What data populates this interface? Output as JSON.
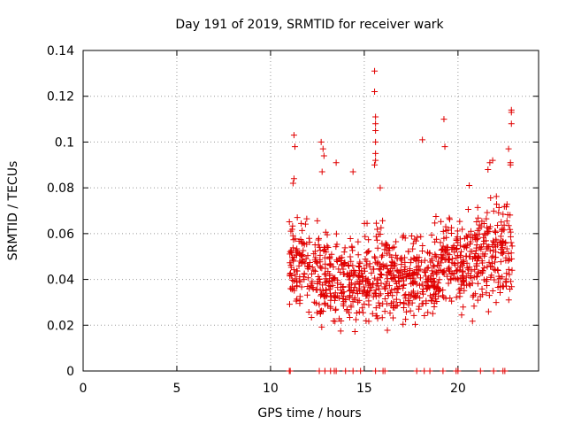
{
  "chart_data": {
    "type": "scatter",
    "title": "Day 191 of 2019, SRMTID for receiver wark",
    "xlabel": "GPS time / hours",
    "ylabel": "SRMTID / TECUs",
    "xlim": [
      0,
      24.3
    ],
    "ylim": [
      0,
      0.14
    ],
    "xticks": [
      0,
      5,
      10,
      15,
      20
    ],
    "yticks": [
      0,
      0.02,
      0.04,
      0.06,
      0.08,
      0.1,
      0.12,
      0.14
    ],
    "xtick_labels": [
      "0",
      "5",
      "10",
      "15",
      "20"
    ],
    "ytick_labels": [
      "0",
      "0.02",
      "0.04",
      "0.06",
      "0.08",
      "0.1",
      "0.12",
      "0.14"
    ],
    "grid": true,
    "marker": "+",
    "color": "#e00000",
    "data_range_hours": [
      11.0,
      22.9
    ],
    "zero_value_times": [
      11.0,
      11.05,
      12.6,
      12.9,
      13.2,
      13.4,
      13.5,
      14.0,
      14.4,
      14.8,
      15.6,
      16.0,
      16.1,
      17.8,
      18.2,
      18.5,
      19.2,
      19.9,
      20.0,
      21.2,
      21.9,
      22.4,
      22.5
    ],
    "notable_points": [
      {
        "x": 15.55,
        "y": 0.131
      },
      {
        "x": 15.55,
        "y": 0.122
      },
      {
        "x": 15.6,
        "y": 0.111
      },
      {
        "x": 15.6,
        "y": 0.108
      },
      {
        "x": 15.6,
        "y": 0.105
      },
      {
        "x": 15.6,
        "y": 0.1
      },
      {
        "x": 15.6,
        "y": 0.095
      },
      {
        "x": 15.6,
        "y": 0.092
      },
      {
        "x": 15.55,
        "y": 0.09
      },
      {
        "x": 19.25,
        "y": 0.11
      },
      {
        "x": 11.25,
        "y": 0.103
      },
      {
        "x": 11.3,
        "y": 0.098
      },
      {
        "x": 12.7,
        "y": 0.1
      },
      {
        "x": 12.8,
        "y": 0.097
      },
      {
        "x": 12.85,
        "y": 0.094
      },
      {
        "x": 18.1,
        "y": 0.101
      },
      {
        "x": 22.85,
        "y": 0.114
      },
      {
        "x": 22.85,
        "y": 0.113
      },
      {
        "x": 22.85,
        "y": 0.108
      },
      {
        "x": 19.3,
        "y": 0.098
      },
      {
        "x": 22.7,
        "y": 0.097
      },
      {
        "x": 22.8,
        "y": 0.091
      },
      {
        "x": 22.8,
        "y": 0.09
      },
      {
        "x": 14.4,
        "y": 0.087
      },
      {
        "x": 13.5,
        "y": 0.091
      },
      {
        "x": 21.85,
        "y": 0.092
      },
      {
        "x": 21.7,
        "y": 0.091
      },
      {
        "x": 21.6,
        "y": 0.088
      },
      {
        "x": 15.85,
        "y": 0.08
      },
      {
        "x": 11.25,
        "y": 0.084
      },
      {
        "x": 11.2,
        "y": 0.082
      },
      {
        "x": 12.75,
        "y": 0.087
      },
      {
        "x": 20.6,
        "y": 0.081
      }
    ],
    "cluster_bands": [
      {
        "x_from": 11.0,
        "x_to": 12.0,
        "y_low": 0.02,
        "y_high": 0.075,
        "n": 90
      },
      {
        "x_from": 12.0,
        "x_to": 13.0,
        "y_low": 0.015,
        "y_high": 0.07,
        "n": 85
      },
      {
        "x_from": 13.0,
        "x_to": 14.0,
        "y_low": 0.015,
        "y_high": 0.065,
        "n": 85
      },
      {
        "x_from": 14.0,
        "x_to": 15.0,
        "y_low": 0.015,
        "y_high": 0.065,
        "n": 85
      },
      {
        "x_from": 15.0,
        "x_to": 16.0,
        "y_low": 0.012,
        "y_high": 0.07,
        "n": 90
      },
      {
        "x_from": 16.0,
        "x_to": 17.0,
        "y_low": 0.015,
        "y_high": 0.07,
        "n": 90
      },
      {
        "x_from": 17.0,
        "x_to": 18.0,
        "y_low": 0.015,
        "y_high": 0.07,
        "n": 90
      },
      {
        "x_from": 18.0,
        "x_to": 19.0,
        "y_low": 0.015,
        "y_high": 0.07,
        "n": 90
      },
      {
        "x_from": 19.0,
        "x_to": 20.0,
        "y_low": 0.018,
        "y_high": 0.075,
        "n": 90
      },
      {
        "x_from": 20.0,
        "x_to": 21.0,
        "y_low": 0.018,
        "y_high": 0.075,
        "n": 90
      },
      {
        "x_from": 21.0,
        "x_to": 22.0,
        "y_low": 0.02,
        "y_high": 0.08,
        "n": 90
      },
      {
        "x_from": 22.0,
        "x_to": 22.9,
        "y_low": 0.02,
        "y_high": 0.085,
        "n": 80
      }
    ]
  }
}
